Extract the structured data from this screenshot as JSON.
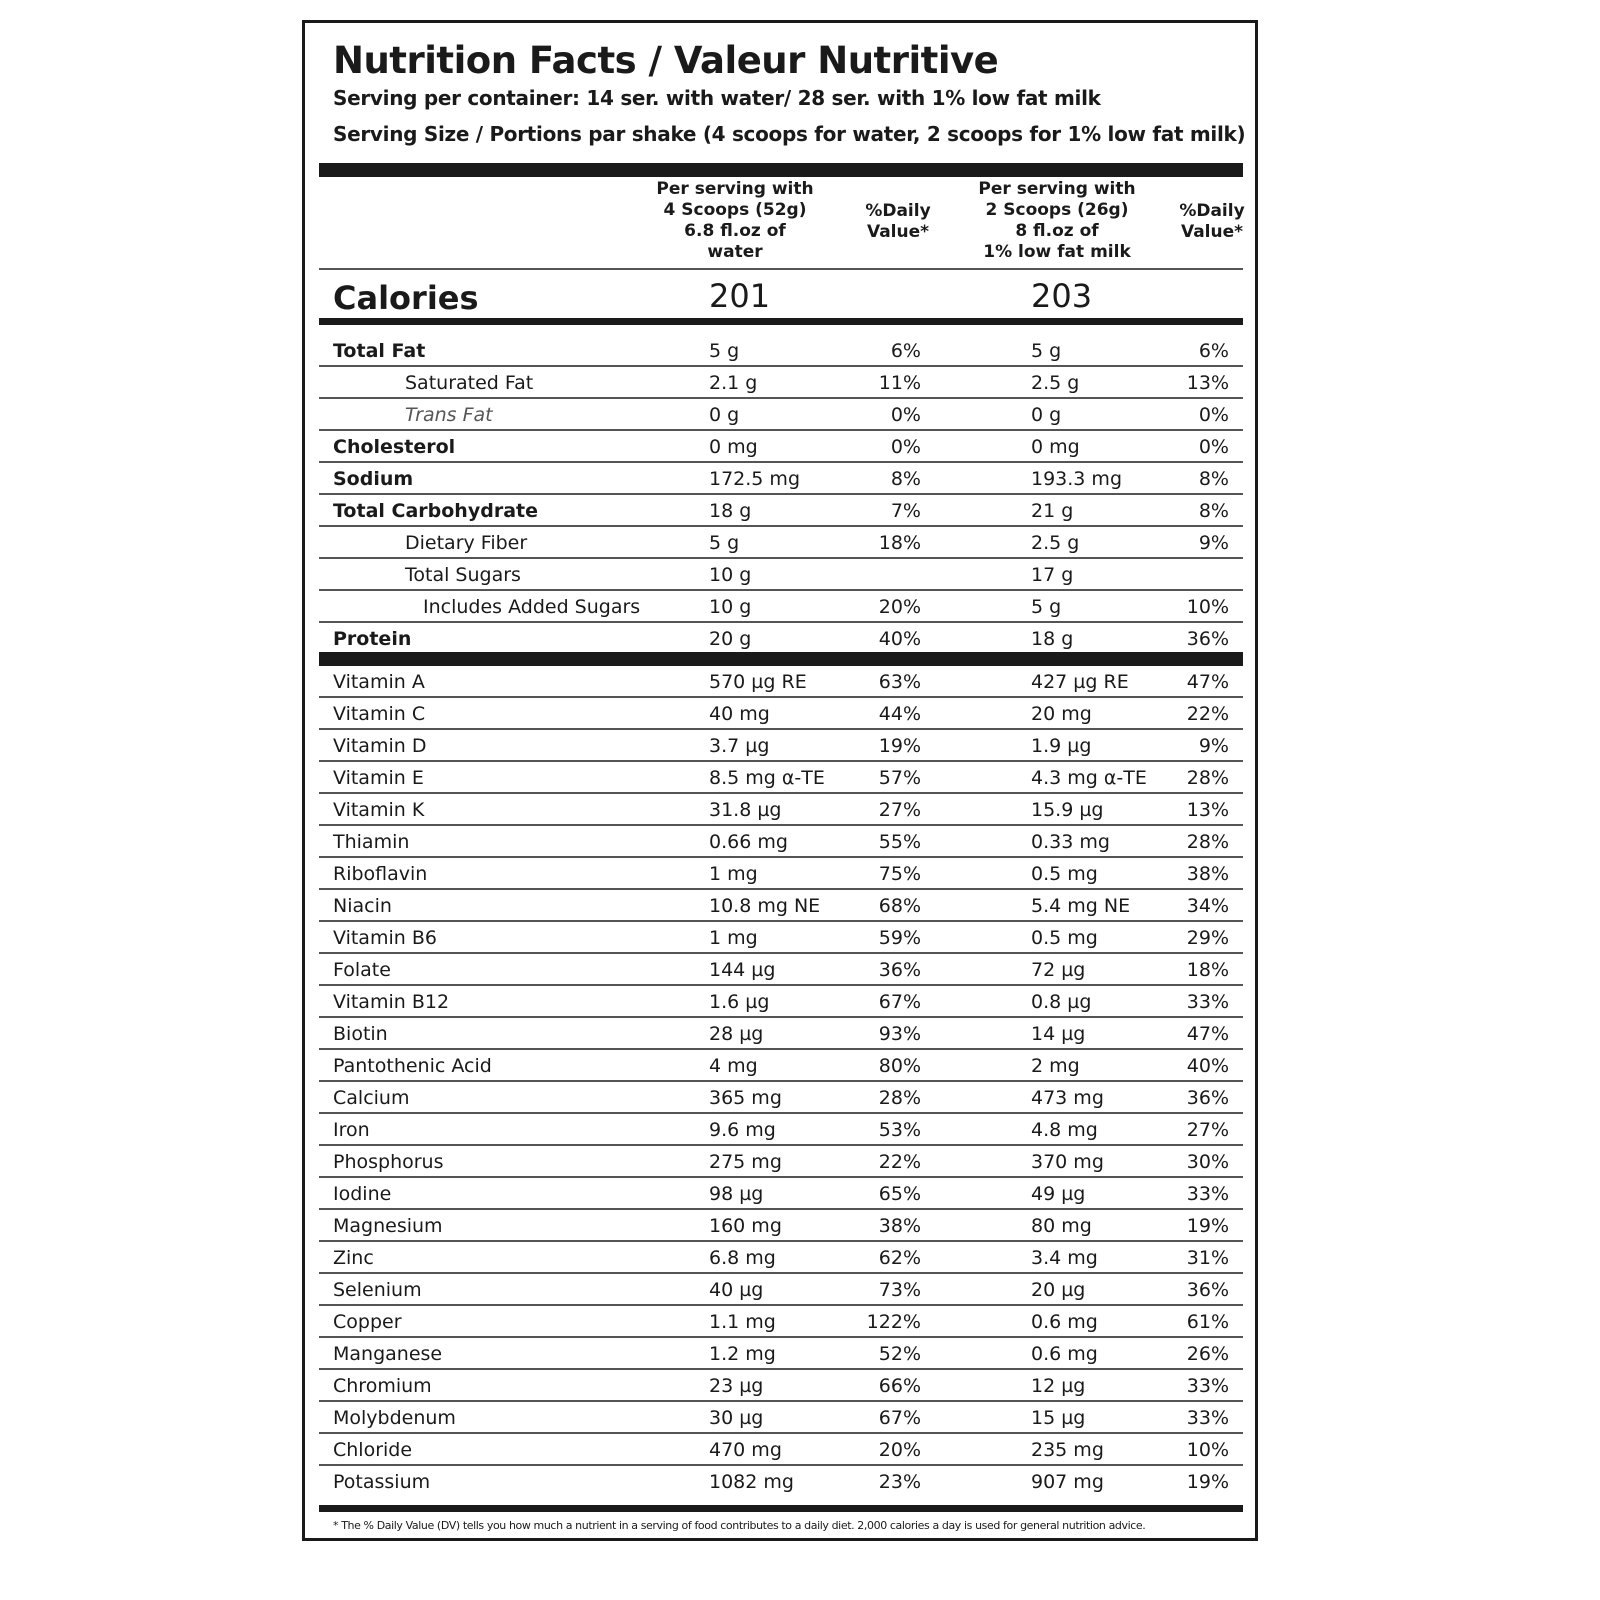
{
  "title": "Nutrition Facts / Valeur Nutritive",
  "serving_per_container": "Serving per container: 14 ser. with water/ 28 ser. with 1% low fat milk",
  "serving_size": "Serving Size / Portions par shake (4 scoops for water, 2 scoops for 1% low fat milk)",
  "columns": {
    "col1": [
      "Per serving with",
      "4 Scoops (52g)",
      "6.8 fl.oz of",
      "water"
    ],
    "dv1": [
      "%Daily",
      "Value*"
    ],
    "col2": [
      "Per serving with",
      "2 Scoops (26g)",
      "8 fl.oz of",
      "1% low fat milk"
    ],
    "dv2": [
      "%Daily",
      "Value*"
    ]
  },
  "calories": {
    "label": "Calories",
    "water": "201",
    "milk": "203"
  },
  "macros": [
    {
      "name": "Total Fat",
      "v1": "5 g",
      "d1": "6%",
      "v2": "5 g",
      "d2": "6%"
    },
    {
      "name": "Saturated Fat",
      "v1": "2.1 g",
      "d1": "11%",
      "v2": "2.5 g",
      "d2": "13%"
    },
    {
      "name": "Trans Fat",
      "v1": "0 g",
      "d1": "0%",
      "v2": "0 g",
      "d2": "0%"
    },
    {
      "name": "Cholesterol",
      "v1": "0 mg",
      "d1": "0%",
      "v2": "0 mg",
      "d2": "0%"
    },
    {
      "name": "Sodium",
      "v1": "172.5 mg",
      "d1": "8%",
      "v2": "193.3 mg",
      "d2": "8%"
    },
    {
      "name": "Total Carbohydrate",
      "v1": "18 g",
      "d1": "7%",
      "v2": "21 g",
      "d2": "8%"
    },
    {
      "name": "Dietary Fiber",
      "v1": "5 g",
      "d1": "18%",
      "v2": "2.5 g",
      "d2": "9%"
    },
    {
      "name": "Total Sugars",
      "v1": "10 g",
      "d1": "",
      "v2": "17 g",
      "d2": ""
    },
    {
      "name": "Includes Added Sugars",
      "v1": "10 g",
      "d1": "20%",
      "v2": "5 g",
      "d2": "10%"
    },
    {
      "name": "Protein",
      "v1": "20 g",
      "d1": "40%",
      "v2": "18 g",
      "d2": "36%"
    }
  ],
  "micros": [
    {
      "name": "Vitamin A",
      "v1": "570 µg RE",
      "d1": "63%",
      "v2": "427 µg RE",
      "d2": "47%"
    },
    {
      "name": "Vitamin C",
      "v1": "40  mg",
      "d1": "44%",
      "v2": "20 mg",
      "d2": "22%"
    },
    {
      "name": "Vitamin D",
      "v1": "3.7 µg",
      "d1": "19%",
      "v2": "1.9 µg",
      "d2": "9%"
    },
    {
      "name": "Vitamin E",
      "v1": "8.5 mg α-TE",
      "d1": "57%",
      "v2": "4.3 mg α-TE",
      "d2": "28%"
    },
    {
      "name": "Vitamin K",
      "v1": "31.8 µg",
      "d1": "27%",
      "v2": "15.9 µg",
      "d2": "13%"
    },
    {
      "name": "Thiamin",
      "v1": "0.66 mg",
      "d1": "55%",
      "v2": "0.33 mg",
      "d2": "28%"
    },
    {
      "name": "Riboflavin",
      "v1": "1 mg",
      "d1": "75%",
      "v2": "0.5 mg",
      "d2": "38%"
    },
    {
      "name": "Niacin",
      "v1": "10.8 mg NE",
      "d1": "68%",
      "v2": "5.4 mg NE",
      "d2": "34%"
    },
    {
      "name": "Vitamin B6",
      "v1": "1 mg",
      "d1": "59%",
      "v2": "0.5 mg",
      "d2": "29%"
    },
    {
      "name": "Folate",
      "v1": "144 µg",
      "d1": "36%",
      "v2": "72 µg",
      "d2": "18%"
    },
    {
      "name": "Vitamin B12",
      "v1": "1.6 µg",
      "d1": "67%",
      "v2": "0.8 µg",
      "d2": "33%"
    },
    {
      "name": "Biotin",
      "v1": "28 µg",
      "d1": "93%",
      "v2": "14 µg",
      "d2": "47%"
    },
    {
      "name": "Pantothenic Acid",
      "v1": "4 mg",
      "d1": "80%",
      "v2": "2 mg",
      "d2": "40%"
    },
    {
      "name": "Calcium",
      "v1": "365 mg",
      "d1": "28%",
      "v2": "473 mg",
      "d2": "36%"
    },
    {
      "name": "Iron",
      "v1": "9.6 mg",
      "d1": "53%",
      "v2": "4.8 mg",
      "d2": "27%"
    },
    {
      "name": "Phosphorus",
      "v1": "275 mg",
      "d1": "22%",
      "v2": "370 mg",
      "d2": "30%"
    },
    {
      "name": "Iodine",
      "v1": "98 µg",
      "d1": "65%",
      "v2": "49 µg",
      "d2": "33%"
    },
    {
      "name": "Magnesium",
      "v1": "160 mg",
      "d1": "38%",
      "v2": "80 mg",
      "d2": "19%"
    },
    {
      "name": "Zinc",
      "v1": "6.8 mg",
      "d1": "62%",
      "v2": "3.4 mg",
      "d2": "31%"
    },
    {
      "name": "Selenium",
      "v1": "40 µg",
      "d1": "73%",
      "v2": "20 µg",
      "d2": "36%"
    },
    {
      "name": "Copper",
      "v1": "1.1 mg",
      "d1": "122%",
      "v2": "0.6 mg",
      "d2": "61%"
    },
    {
      "name": "Manganese",
      "v1": "1.2 mg",
      "d1": "52%",
      "v2": "0.6 mg",
      "d2": "26%"
    },
    {
      "name": "Chromium",
      "v1": "23 µg",
      "d1": "66%",
      "v2": "12 µg",
      "d2": "33%"
    },
    {
      "name": "Molybdenum",
      "v1": "30 µg",
      "d1": "67%",
      "v2": "15 µg",
      "d2": "33%"
    },
    {
      "name": "Chloride",
      "v1": "470 mg",
      "d1": "20%",
      "v2": "235 mg",
      "d2": "10%"
    },
    {
      "name": "Potassium",
      "v1": "1082 mg",
      "d1": "23%",
      "v2": "907 mg",
      "d2": "19%"
    }
  ],
  "footnote": "* The % Daily Value (DV) tells you how much a nutrient in a serving of food contributes to a daily diet. 2,000 calories a day is used for general nutrition advice."
}
